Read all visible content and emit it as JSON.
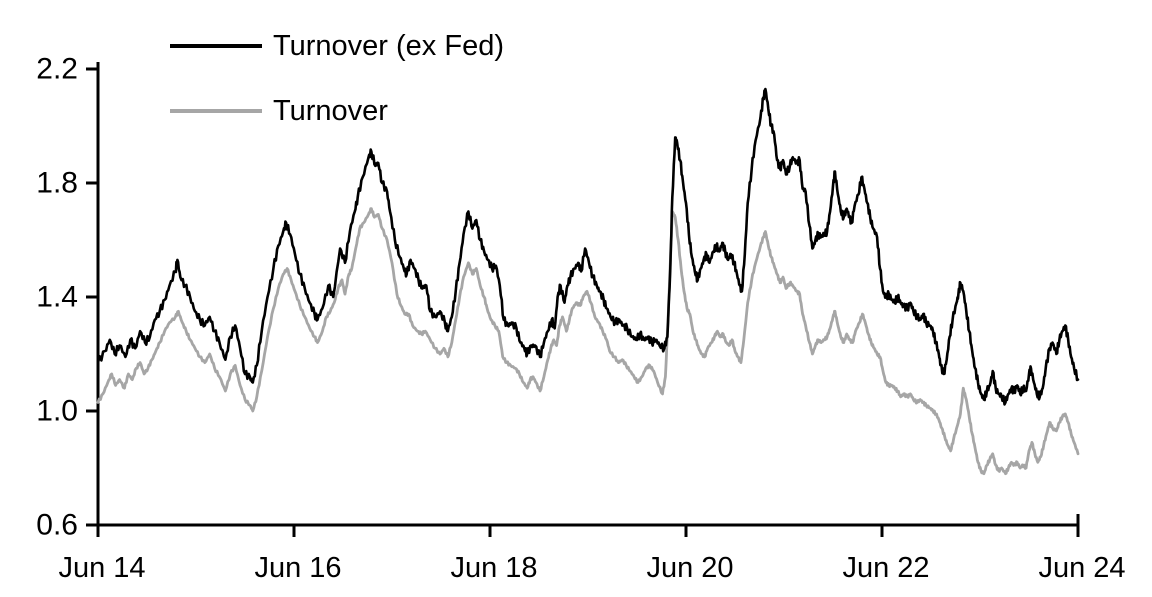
{
  "colors": {
    "background": "#ffffff",
    "axis": "#000000",
    "series_black": "#000000",
    "series_gray": "#a6a6a6"
  },
  "chart_data": {
    "type": "line",
    "title": "",
    "grid": false,
    "legend_position": "top-left-inside",
    "x_axis": {
      "tick_labels": [
        "Jun 14",
        "Jun 16",
        "Jun 18",
        "Jun 20",
        "Jun 22",
        "Jun 24"
      ],
      "tick_positions_years": [
        0,
        2,
        4,
        6,
        8,
        10
      ],
      "range_years": [
        0,
        10
      ]
    },
    "y_axis": {
      "tick_labels": [
        "0.6",
        "1.0",
        "1.4",
        "1.8",
        "2.2"
      ],
      "tick_values": [
        0.6,
        1.0,
        1.4,
        1.8,
        2.2
      ],
      "range": [
        0.6,
        2.2
      ]
    },
    "legend": [
      {
        "label": "Turnover (ex Fed)",
        "color": "#000000"
      },
      {
        "label": "Turnover",
        "color": "#a6a6a6"
      }
    ],
    "series": [
      {
        "name": "Turnover (ex Fed)",
        "color": "#000000",
        "x": [
          0,
          0.07,
          0.12,
          0.17,
          0.22,
          0.28,
          0.33,
          0.38,
          0.43,
          0.48,
          0.53,
          0.58,
          0.63,
          0.68,
          0.73,
          0.79,
          0.81,
          0.84,
          0.89,
          0.94,
          0.99,
          1.04,
          1.09,
          1.14,
          1.19,
          1.24,
          1.3,
          1.35,
          1.4,
          1.45,
          1.5,
          1.55,
          1.58,
          1.62,
          1.67,
          1.73,
          1.79,
          1.84,
          1.89,
          1.92,
          1.96,
          2.01,
          2.06,
          2.11,
          2.16,
          2.21,
          2.24,
          2.29,
          2.35,
          2.4,
          2.47,
          2.52,
          2.57,
          2.62,
          2.65,
          2.7,
          2.76,
          2.79,
          2.83,
          2.86,
          2.9,
          2.95,
          2.98,
          3.03,
          3.08,
          3.12,
          3.15,
          3.19,
          3.23,
          3.27,
          3.31,
          3.35,
          3.39,
          3.44,
          3.49,
          3.54,
          3.57,
          3.61,
          3.65,
          3.69,
          3.73,
          3.78,
          3.82,
          3.86,
          3.9,
          3.94,
          3.98,
          4.02,
          4.06,
          4.1,
          4.14,
          4.18,
          4.22,
          4.27,
          4.31,
          4.35,
          4.38,
          4.42,
          4.46,
          4.51,
          4.55,
          4.59,
          4.63,
          4.66,
          4.69,
          4.72,
          4.76,
          4.79,
          4.82,
          4.86,
          4.9,
          4.93,
          4.97,
          5.01,
          5.05,
          5.09,
          5.12,
          5.16,
          5.19,
          5.23,
          5.28,
          5.32,
          5.36,
          5.4,
          5.45,
          5.49,
          5.53,
          5.57,
          5.61,
          5.65,
          5.69,
          5.73,
          5.78,
          5.81,
          5.84,
          5.86,
          5.89,
          5.91,
          5.94,
          5.97,
          6,
          6.03,
          6.06,
          6.09,
          6.12,
          6.15,
          6.18,
          6.21,
          6.24,
          6.28,
          6.31,
          6.34,
          6.37,
          6.4,
          6.43,
          6.46,
          6.49,
          6.52,
          6.55,
          6.57,
          6.6,
          6.63,
          6.67,
          6.71,
          6.76,
          6.79,
          6.81,
          6.84,
          6.87,
          6.9,
          6.93,
          6.96,
          6.99,
          7.02,
          7.06,
          7.09,
          7.13,
          7.16,
          7.19,
          7.22,
          7.26,
          7.29,
          7.32,
          7.35,
          7.38,
          7.41,
          7.44,
          7.47,
          7.5,
          7.52,
          7.55,
          7.58,
          7.61,
          7.64,
          7.67,
          7.69,
          7.72,
          7.76,
          7.79,
          7.82,
          7.85,
          7.88,
          7.91,
          7.95,
          7.98,
          8.01,
          8.04,
          8.07,
          8.1,
          8.13,
          8.16,
          8.19,
          8.22,
          8.26,
          8.29,
          8.32,
          8.36,
          8.39,
          8.42,
          8.45,
          8.49,
          8.52,
          8.55,
          8.58,
          8.6,
          8.63,
          8.66,
          8.69,
          8.72,
          8.76,
          8.78,
          8.8,
          8.83,
          8.86,
          8.89,
          8.92,
          8.95,
          8.98,
          9.01,
          9.04,
          9.07,
          9.1,
          9.13,
          9.16,
          9.19,
          9.22,
          9.26,
          9.29,
          9.32,
          9.35,
          9.38,
          9.41,
          9.44,
          9.47,
          9.5,
          9.52,
          9.55,
          9.58,
          9.61,
          9.64,
          9.67,
          9.71,
          9.74,
          9.78,
          9.81,
          9.84,
          9.87,
          9.9,
          9.93,
          9.96,
          10
        ],
        "y": [
          1.17,
          1.21,
          1.25,
          1.2,
          1.23,
          1.19,
          1.25,
          1.22,
          1.28,
          1.24,
          1.26,
          1.32,
          1.35,
          1.39,
          1.44,
          1.49,
          1.53,
          1.47,
          1.44,
          1.4,
          1.35,
          1.32,
          1.3,
          1.33,
          1.28,
          1.24,
          1.18,
          1.26,
          1.3,
          1.22,
          1.13,
          1.12,
          1.1,
          1.16,
          1.28,
          1.4,
          1.5,
          1.58,
          1.63,
          1.66,
          1.62,
          1.55,
          1.48,
          1.43,
          1.38,
          1.34,
          1.32,
          1.36,
          1.44,
          1.4,
          1.57,
          1.52,
          1.63,
          1.7,
          1.75,
          1.82,
          1.89,
          1.91,
          1.86,
          1.87,
          1.8,
          1.77,
          1.7,
          1.6,
          1.54,
          1.5,
          1.48,
          1.53,
          1.5,
          1.46,
          1.43,
          1.44,
          1.35,
          1.33,
          1.35,
          1.31,
          1.28,
          1.33,
          1.42,
          1.52,
          1.62,
          1.7,
          1.64,
          1.67,
          1.6,
          1.56,
          1.53,
          1.5,
          1.51,
          1.44,
          1.32,
          1.3,
          1.31,
          1.29,
          1.24,
          1.22,
          1.2,
          1.23,
          1.23,
          1.19,
          1.24,
          1.28,
          1.32,
          1.29,
          1.4,
          1.44,
          1.38,
          1.44,
          1.47,
          1.5,
          1.52,
          1.49,
          1.57,
          1.52,
          1.47,
          1.44,
          1.42,
          1.39,
          1.36,
          1.33,
          1.31,
          1.32,
          1.3,
          1.29,
          1.26,
          1.25,
          1.27,
          1.25,
          1.26,
          1.24,
          1.25,
          1.23,
          1.22,
          1.26,
          1.5,
          1.75,
          1.96,
          1.94,
          1.88,
          1.8,
          1.73,
          1.62,
          1.54,
          1.49,
          1.46,
          1.5,
          1.53,
          1.55,
          1.52,
          1.56,
          1.58,
          1.56,
          1.59,
          1.56,
          1.53,
          1.55,
          1.52,
          1.48,
          1.44,
          1.42,
          1.55,
          1.73,
          1.85,
          1.95,
          2.03,
          2.1,
          2.13,
          2.06,
          2,
          1.97,
          1.88,
          1.85,
          1.88,
          1.83,
          1.86,
          1.89,
          1.87,
          1.88,
          1.78,
          1.77,
          1.65,
          1.57,
          1.6,
          1.62,
          1.61,
          1.62,
          1.63,
          1.7,
          1.79,
          1.84,
          1.76,
          1.7,
          1.68,
          1.71,
          1.68,
          1.66,
          1.72,
          1.76,
          1.82,
          1.78,
          1.73,
          1.68,
          1.64,
          1.61,
          1.5,
          1.42,
          1.4,
          1.41,
          1.39,
          1.38,
          1.4,
          1.38,
          1.37,
          1.36,
          1.38,
          1.35,
          1.33,
          1.32,
          1.34,
          1.31,
          1.3,
          1.28,
          1.24,
          1.2,
          1.16,
          1.13,
          1.18,
          1.26,
          1.32,
          1.38,
          1.41,
          1.45,
          1.42,
          1.35,
          1.28,
          1.21,
          1.15,
          1.1,
          1.06,
          1.04,
          1.07,
          1.09,
          1.14,
          1.08,
          1.06,
          1.05,
          1.03,
          1.06,
          1.08,
          1.07,
          1.09,
          1.06,
          1.08,
          1.07,
          1.13,
          1.15,
          1.1,
          1.06,
          1.05,
          1.08,
          1.15,
          1.22,
          1.24,
          1.2,
          1.25,
          1.28,
          1.3,
          1.25,
          1.19,
          1.15,
          1.11
        ]
      },
      {
        "name": "Turnover",
        "color": "#a6a6a6",
        "x": [
          0,
          0.05,
          0.1,
          0.14,
          0.18,
          0.22,
          0.27,
          0.31,
          0.35,
          0.39,
          0.43,
          0.47,
          0.51,
          0.55,
          0.59,
          0.63,
          0.68,
          0.73,
          0.79,
          0.82,
          0.86,
          0.9,
          0.94,
          0.99,
          1.04,
          1.09,
          1.14,
          1.19,
          1.24,
          1.3,
          1.35,
          1.4,
          1.45,
          1.5,
          1.55,
          1.58,
          1.62,
          1.67,
          1.73,
          1.79,
          1.84,
          1.89,
          1.93,
          1.97,
          2.01,
          2.06,
          2.11,
          2.16,
          2.21,
          2.24,
          2.29,
          2.33,
          2.37,
          2.41,
          2.45,
          2.49,
          2.52,
          2.56,
          2.59,
          2.63,
          2.67,
          2.71,
          2.76,
          2.79,
          2.82,
          2.86,
          2.9,
          2.95,
          3,
          3.05,
          3.09,
          3.13,
          3.17,
          3.21,
          3.26,
          3.3,
          3.34,
          3.39,
          3.44,
          3.49,
          3.53,
          3.57,
          3.61,
          3.65,
          3.69,
          3.73,
          3.78,
          3.82,
          3.86,
          3.9,
          3.94,
          3.97,
          4.01,
          4.05,
          4.09,
          4.13,
          4.17,
          4.21,
          4.26,
          4.3,
          4.34,
          4.38,
          4.41,
          4.44,
          4.47,
          4.51,
          4.55,
          4.59,
          4.62,
          4.65,
          4.68,
          4.71,
          4.74,
          4.78,
          4.81,
          4.84,
          4.88,
          4.92,
          4.95,
          4.99,
          5.03,
          5.07,
          5.11,
          5.15,
          5.19,
          5.22,
          5.27,
          5.31,
          5.35,
          5.39,
          5.43,
          5.47,
          5.51,
          5.55,
          5.59,
          5.63,
          5.67,
          5.71,
          5.76,
          5.79,
          5.82,
          5.84,
          5.86,
          5.89,
          5.92,
          5.95,
          5.98,
          6.01,
          6.04,
          6.07,
          6.1,
          6.13,
          6.16,
          6.19,
          6.22,
          6.26,
          6.29,
          6.32,
          6.35,
          6.38,
          6.41,
          6.44,
          6.47,
          6.5,
          6.53,
          6.56,
          6.59,
          6.63,
          6.67,
          6.71,
          6.76,
          6.79,
          6.81,
          6.84,
          6.87,
          6.9,
          6.93,
          6.96,
          6.99,
          7.02,
          7.06,
          7.09,
          7.13,
          7.16,
          7.19,
          7.22,
          7.26,
          7.29,
          7.32,
          7.35,
          7.38,
          7.41,
          7.44,
          7.47,
          7.5,
          7.52,
          7.55,
          7.58,
          7.61,
          7.64,
          7.67,
          7.7,
          7.73,
          7.77,
          7.8,
          7.83,
          7.86,
          7.89,
          7.92,
          7.95,
          7.98,
          8.01,
          8.04,
          8.07,
          8.1,
          8.13,
          8.16,
          8.19,
          8.22,
          8.26,
          8.29,
          8.32,
          8.36,
          8.39,
          8.42,
          8.45,
          8.49,
          8.52,
          8.55,
          8.58,
          8.61,
          8.64,
          8.67,
          8.7,
          8.73,
          8.77,
          8.8,
          8.83,
          8.86,
          8.89,
          8.92,
          8.95,
          8.98,
          9.01,
          9.04,
          9.07,
          9.1,
          9.13,
          9.16,
          9.19,
          9.22,
          9.26,
          9.29,
          9.32,
          9.35,
          9.38,
          9.41,
          9.44,
          9.47,
          9.5,
          9.53,
          9.56,
          9.59,
          9.62,
          9.65,
          9.68,
          9.71,
          9.74,
          9.78,
          9.81,
          9.84,
          9.87,
          9.9,
          9.93,
          9.96,
          10
        ],
        "y": [
          1.03,
          1.06,
          1.1,
          1.13,
          1.09,
          1.11,
          1.08,
          1.13,
          1.11,
          1.15,
          1.17,
          1.13,
          1.15,
          1.18,
          1.21,
          1.24,
          1.28,
          1.31,
          1.33,
          1.35,
          1.31,
          1.28,
          1.25,
          1.22,
          1.19,
          1.17,
          1.2,
          1.15,
          1.12,
          1.07,
          1.13,
          1.16,
          1.09,
          1.04,
          1.02,
          1,
          1.05,
          1.14,
          1.26,
          1.36,
          1.43,
          1.48,
          1.5,
          1.46,
          1.42,
          1.37,
          1.33,
          1.29,
          1.26,
          1.24,
          1.28,
          1.33,
          1.35,
          1.38,
          1.43,
          1.46,
          1.41,
          1.48,
          1.5,
          1.57,
          1.64,
          1.66,
          1.69,
          1.71,
          1.68,
          1.69,
          1.64,
          1.6,
          1.52,
          1.41,
          1.37,
          1.34,
          1.34,
          1.3,
          1.28,
          1.27,
          1.28,
          1.25,
          1.22,
          1.2,
          1.22,
          1.19,
          1.24,
          1.32,
          1.4,
          1.47,
          1.52,
          1.48,
          1.5,
          1.44,
          1.4,
          1.36,
          1.32,
          1.3,
          1.28,
          1.19,
          1.17,
          1.16,
          1.15,
          1.13,
          1.1,
          1.08,
          1.11,
          1.12,
          1.1,
          1.07,
          1.12,
          1.18,
          1.22,
          1.25,
          1.23,
          1.3,
          1.33,
          1.28,
          1.32,
          1.36,
          1.38,
          1.37,
          1.4,
          1.42,
          1.38,
          1.33,
          1.31,
          1.28,
          1.25,
          1.21,
          1.19,
          1.17,
          1.18,
          1.16,
          1.14,
          1.12,
          1.1,
          1.12,
          1.15,
          1.16,
          1.14,
          1.1,
          1.06,
          1.12,
          1.35,
          1.52,
          1.7,
          1.68,
          1.6,
          1.5,
          1.42,
          1.36,
          1.34,
          1.28,
          1.25,
          1.22,
          1.2,
          1.19,
          1.22,
          1.24,
          1.26,
          1.28,
          1.26,
          1.27,
          1.24,
          1.23,
          1.25,
          1.21,
          1.19,
          1.17,
          1.25,
          1.38,
          1.46,
          1.52,
          1.58,
          1.61,
          1.63,
          1.58,
          1.54,
          1.51,
          1.48,
          1.45,
          1.47,
          1.43,
          1.45,
          1.44,
          1.42,
          1.41,
          1.34,
          1.3,
          1.24,
          1.2,
          1.23,
          1.25,
          1.24,
          1.25,
          1.26,
          1.29,
          1.33,
          1.35,
          1.3,
          1.26,
          1.24,
          1.27,
          1.25,
          1.24,
          1.28,
          1.31,
          1.34,
          1.31,
          1.27,
          1.24,
          1.22,
          1.2,
          1.19,
          1.14,
          1.1,
          1.09,
          1.09,
          1.08,
          1.07,
          1.05,
          1.06,
          1.05,
          1.06,
          1.04,
          1.03,
          1.04,
          1.03,
          1.02,
          1.01,
          1,
          0.99,
          0.97,
          0.94,
          0.91,
          0.88,
          0.86,
          0.9,
          0.95,
          0.99,
          1.08,
          1.04,
          0.98,
          0.92,
          0.87,
          0.82,
          0.79,
          0.78,
          0.81,
          0.83,
          0.85,
          0.81,
          0.79,
          0.8,
          0.78,
          0.8,
          0.82,
          0.81,
          0.82,
          0.8,
          0.81,
          0.8,
          0.86,
          0.89,
          0.85,
          0.82,
          0.84,
          0.88,
          0.92,
          0.96,
          0.94,
          0.93,
          0.96,
          0.98,
          0.99,
          0.96,
          0.92,
          0.89,
          0.85
        ]
      }
    ]
  }
}
